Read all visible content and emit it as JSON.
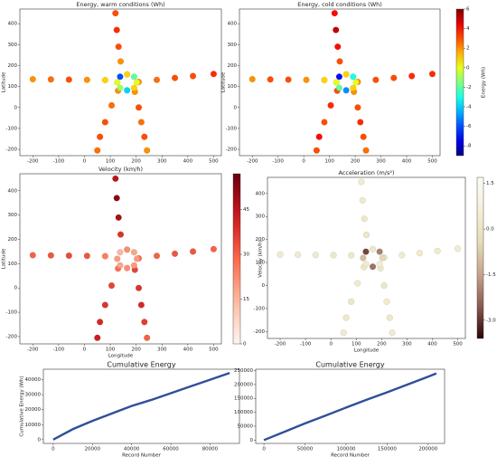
{
  "chart_data": [
    {
      "type": "scatter",
      "title": "Energy, warm conditions (Wh)",
      "ylabel": "Latitude",
      "colormap": "jet",
      "colorbar": false,
      "x": [
        -200,
        -130,
        -60,
        10,
        80,
        120,
        125,
        132,
        140,
        210,
        280,
        350,
        420,
        500,
        130,
        105,
        80,
        60,
        50,
        195,
        210,
        220,
        232,
        242,
        203,
        192,
        165,
        138,
        127,
        138,
        165,
        192
      ],
      "y": [
        135,
        134,
        133,
        132,
        131,
        450,
        370,
        290,
        220,
        122,
        132,
        141,
        150,
        160,
        80,
        10,
        -70,
        -140,
        -205,
        75,
        0,
        -70,
        -140,
        -205,
        120,
        147,
        158,
        147,
        120,
        93,
        82,
        93
      ],
      "c": [
        2,
        2.5,
        3,
        2,
        1,
        3,
        3.5,
        3,
        2,
        2,
        2.5,
        3,
        3,
        3.5,
        2,
        2.5,
        3,
        3,
        2.5,
        2,
        3,
        2.5,
        3,
        2,
        0,
        -2,
        1,
        -6,
        0,
        -1,
        -4,
        1
      ],
      "clim": [
        -9,
        6
      ],
      "xlim": [
        -250,
        530
      ],
      "xticks": [
        -200,
        -100,
        0,
        100,
        200,
        300,
        400,
        500
      ],
      "ylim": [
        -230,
        470
      ],
      "yticks": [
        -200,
        -100,
        0,
        100,
        200,
        300,
        400
      ]
    },
    {
      "type": "scatter",
      "title": "Energy, cold conditions (Wh)",
      "ylabel": "Latitude",
      "colormap": "jet",
      "colorbar": true,
      "colorbar_label": "Energy (Wh)",
      "x": [
        -200,
        -130,
        -60,
        10,
        80,
        120,
        125,
        132,
        140,
        210,
        280,
        350,
        420,
        500,
        130,
        105,
        80,
        60,
        50,
        195,
        210,
        220,
        232,
        242,
        203,
        192,
        165,
        138,
        127,
        138,
        165,
        192
      ],
      "y": [
        135,
        134,
        133,
        132,
        131,
        450,
        370,
        290,
        220,
        122,
        132,
        141,
        150,
        160,
        80,
        10,
        -70,
        -140,
        -205,
        75,
        0,
        -70,
        -140,
        -205,
        120,
        147,
        158,
        147,
        120,
        93,
        82,
        93
      ],
      "c": [
        2,
        3,
        3,
        2,
        1,
        4,
        5,
        4,
        3,
        2,
        3,
        3,
        3.5,
        3.5,
        3,
        3.5,
        3,
        4,
        3,
        2,
        3,
        3.5,
        3,
        2.5,
        0,
        -3,
        1,
        -7,
        0,
        -2,
        -5,
        1
      ],
      "clim": [
        -9,
        6
      ],
      "cticks": [
        6,
        4,
        2,
        0,
        -2,
        -4,
        -6,
        -8
      ],
      "xlim": [
        -250,
        530
      ],
      "xticks": [
        -200,
        -100,
        0,
        100,
        200,
        300,
        400,
        500
      ],
      "ylim": [
        -230,
        470
      ],
      "yticks": [
        -200,
        -100,
        0,
        100,
        200,
        300,
        400
      ]
    },
    {
      "type": "scatter",
      "title": "Velocity (km/h)",
      "ylabel": "Latitude",
      "xlabel": "Longitude",
      "colormap": "reds",
      "colorbar": true,
      "colorbar_label": "Velocity (km/h)",
      "x": [
        -200,
        -130,
        -60,
        10,
        80,
        120,
        125,
        132,
        140,
        210,
        280,
        350,
        420,
        500,
        130,
        105,
        80,
        60,
        50,
        195,
        210,
        220,
        232,
        242,
        203,
        192,
        165,
        138,
        127,
        138,
        165,
        192
      ],
      "y": [
        135,
        134,
        133,
        132,
        131,
        450,
        370,
        290,
        220,
        122,
        132,
        141,
        150,
        160,
        80,
        10,
        -70,
        -140,
        -205,
        75,
        0,
        -70,
        -140,
        -205,
        120,
        147,
        158,
        147,
        120,
        93,
        82,
        93
      ],
      "c": [
        30,
        32,
        34,
        32,
        25,
        45,
        52,
        48,
        38,
        28,
        30,
        32,
        32,
        30,
        28,
        35,
        38,
        40,
        42,
        35,
        38,
        40,
        36,
        30,
        20,
        18,
        22,
        15,
        20,
        18,
        22,
        20
      ],
      "clim": [
        0,
        57
      ],
      "cticks": [
        0,
        15,
        30,
        45
      ],
      "xlim": [
        -250,
        530
      ],
      "xticks": [
        -200,
        -100,
        0,
        100,
        200,
        300,
        400,
        500
      ],
      "ylim": [
        -230,
        470
      ],
      "yticks": [
        -200,
        -100,
        0,
        100,
        200,
        300,
        400
      ]
    },
    {
      "type": "scatter",
      "title": "Acceleration (m/s²)",
      "xlabel": "Longitude",
      "colormap": "pink",
      "colorbar": true,
      "colorbar_label": "Acceleration (m/s²)",
      "x": [
        -200,
        -130,
        -60,
        10,
        80,
        120,
        125,
        132,
        140,
        210,
        280,
        350,
        420,
        500,
        130,
        105,
        80,
        60,
        50,
        195,
        210,
        220,
        232,
        242,
        203,
        192,
        165,
        138,
        127,
        138,
        165,
        192
      ],
      "y": [
        135,
        134,
        133,
        132,
        131,
        450,
        370,
        290,
        220,
        122,
        132,
        141,
        150,
        160,
        80,
        10,
        -70,
        -140,
        -205,
        75,
        0,
        -70,
        -140,
        -205,
        120,
        147,
        158,
        147,
        120,
        93,
        82,
        93
      ],
      "c": [
        0.3,
        0.4,
        0.3,
        0.2,
        0.2,
        0.4,
        0.3,
        0.2,
        0.1,
        0.3,
        0.4,
        0.3,
        0.3,
        0.4,
        0.2,
        0.3,
        0.1,
        0.2,
        0.3,
        0.2,
        0.1,
        0.3,
        0.2,
        0.3,
        -0.5,
        -2,
        0.2,
        -2.8,
        -1,
        0.3,
        -2.2,
        0.5
      ],
      "clim": [
        -3.6,
        1.7
      ],
      "cticks": [
        1.5,
        {
          "value": 0,
          "label": "0.0"
        },
        -1.5,
        {
          "value": -3,
          "label": "-3.0"
        }
      ],
      "xlim": [
        -250,
        530
      ],
      "xticks": [
        -200,
        -100,
        0,
        100,
        200,
        300,
        400,
        500
      ],
      "ylim": [
        -230,
        470
      ],
      "yticks": [
        -200,
        -100,
        0,
        100,
        200,
        300,
        400
      ]
    },
    {
      "type": "line",
      "title": "Cumulative Energy",
      "xlabel": "Record Number",
      "ylabel": "Cumulative Energy (Wh)",
      "color": "#2f4f9a",
      "x": [
        0,
        10000,
        20000,
        30000,
        40000,
        50000,
        60000,
        70000,
        80000,
        90000
      ],
      "values": [
        0,
        7000,
        12500,
        17500,
        22500,
        26500,
        31000,
        35500,
        40000,
        44500
      ],
      "xlim": [
        -5000,
        95000
      ],
      "xticks": [
        0,
        20000,
        40000,
        60000,
        80000
      ],
      "ylim": [
        -2500,
        47000
      ],
      "yticks": [
        0,
        10000,
        20000,
        30000,
        40000
      ]
    },
    {
      "type": "line",
      "title": "Cumulative Energy",
      "xlabel": "Record Number",
      "color": "#2f4f9a",
      "x": [
        0,
        25000,
        50000,
        75000,
        100000,
        125000,
        150000,
        175000,
        200000,
        210000
      ],
      "values": [
        0,
        30000,
        60000,
        88000,
        117000,
        145000,
        172000,
        200000,
        228000,
        240000
      ],
      "xlim": [
        -10000,
        220000
      ],
      "xticks": [
        0,
        50000,
        100000,
        150000,
        200000
      ],
      "ylim": [
        -12000,
        255000
      ],
      "yticks": [
        0,
        50000,
        100000,
        150000,
        200000,
        250000
      ]
    }
  ]
}
